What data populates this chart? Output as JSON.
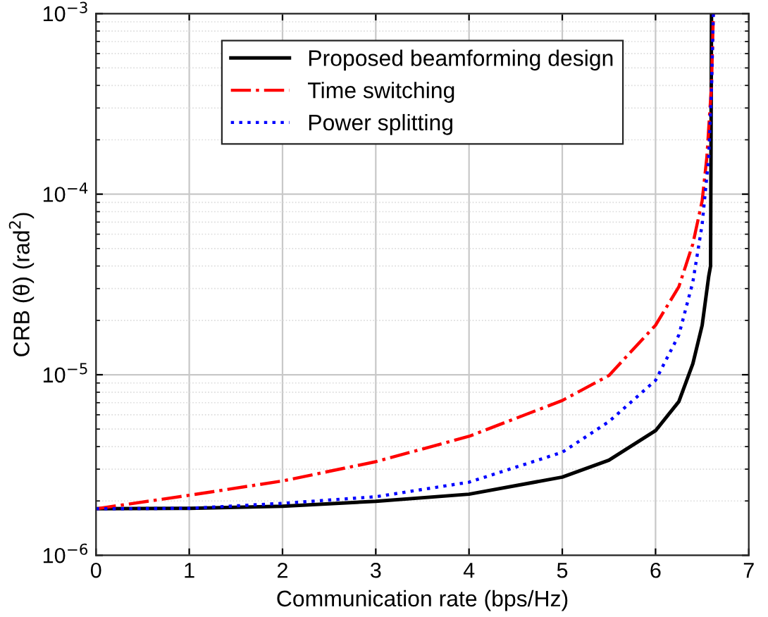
{
  "chart_data": {
    "type": "line",
    "xlabel": "Communication rate (bps/Hz)",
    "ylabel": "CRB (θ) (rad$^{2}$)",
    "log": "y",
    "xlim": [
      0,
      7
    ],
    "ylim": [
      1e-06,
      0.001
    ],
    "xticks": [
      0,
      1,
      2,
      3,
      4,
      5,
      6,
      7
    ],
    "yticks": [
      {
        "value": 1e-06,
        "label": "10$^{−6}$"
      },
      {
        "value": 1e-05,
        "label": "10$^{−5}$"
      },
      {
        "value": 0.0001,
        "label": "10$^{−4}$"
      },
      {
        "value": 0.001,
        "label": "10$^{−3}$"
      }
    ],
    "grid": true,
    "legend": "top",
    "marker": "none",
    "series": [
      {
        "name": "Proposed beamforming design",
        "color": "#000000",
        "line_style": "solid",
        "x": [
          0,
          1,
          2,
          3,
          4,
          5,
          5.5,
          6,
          6.25,
          6.4,
          6.5,
          6.57,
          6.59,
          6.6
        ],
        "values": [
          1.81e-06,
          1.82e-06,
          1.87e-06,
          1.99e-06,
          2.18e-06,
          2.71e-06,
          3.36e-06,
          4.9e-06,
          7.1e-06,
          1.15e-05,
          1.88e-05,
          3.5e-05,
          4e-05,
          0.001
        ]
      },
      {
        "name": "Time switching",
        "color": "#ff0000",
        "line_style": "dashdot",
        "x": [
          0,
          1,
          2,
          3,
          4,
          5,
          5.5,
          6,
          6.25,
          6.4,
          6.5,
          6.55,
          6.6,
          6.62
        ],
        "values": [
          1.81e-06,
          2.15e-06,
          2.58e-06,
          3.3e-06,
          4.56e-06,
          7.2e-06,
          9.9e-06,
          1.88e-05,
          3.07e-05,
          5.3e-05,
          9.2e-05,
          0.00016,
          0.0004,
          0.001
        ]
      },
      {
        "name": "Power splitting",
        "color": "#0000ff",
        "line_style": "dotted",
        "x": [
          0,
          1,
          2,
          3,
          4,
          5,
          5.5,
          6,
          6.25,
          6.4,
          6.5,
          6.57,
          6.6,
          6.62
        ],
        "values": [
          1.81e-06,
          1.82e-06,
          1.94e-06,
          2.11e-06,
          2.54e-06,
          3.72e-06,
          5.5e-06,
          9.3e-06,
          1.66e-05,
          3.26e-05,
          6.8e-05,
          0.00016,
          0.00038,
          0.001
        ]
      }
    ]
  }
}
